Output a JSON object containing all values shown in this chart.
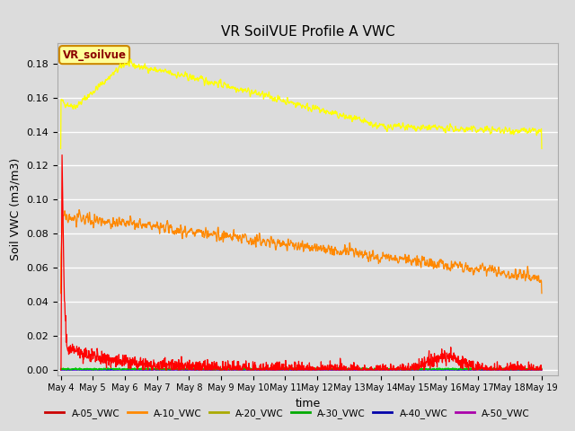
{
  "title": "VR SoilVUE Profile A VWC",
  "xlabel": "time",
  "ylabel": "Soil VWC (m3/m3)",
  "annotation_text": "VR_soilvue",
  "ylim": [
    -0.003,
    0.192
  ],
  "background_color": "#dcdcdc",
  "plot_bg_color": "#dcdcdc",
  "grid_color": "#ffffff",
  "x_tick_labels": [
    "May 4",
    "May 5",
    "May 6",
    "May 7",
    "May 8",
    "May 9",
    "May 10",
    "May 11",
    "May 12",
    "May 13",
    "May 14",
    "May 15",
    "May 16",
    "May 17",
    "May 18",
    "May 19"
  ],
  "series_colors": {
    "A-05_VWC": "#ff0000",
    "A-10_VWC": "#ff8800",
    "A-20_VWC": "#ffff00",
    "A-30_VWC": "#00cc00",
    "A-40_VWC": "#0000dd",
    "A-50_VWC": "#cc00cc"
  },
  "legend_colors": {
    "A-05_VWC": "#cc0000",
    "A-10_VWC": "#ff8800",
    "A-20_VWC": "#aaaa00",
    "A-30_VWC": "#00aa00",
    "A-40_VWC": "#0000aa",
    "A-50_VWC": "#aa00aa"
  }
}
